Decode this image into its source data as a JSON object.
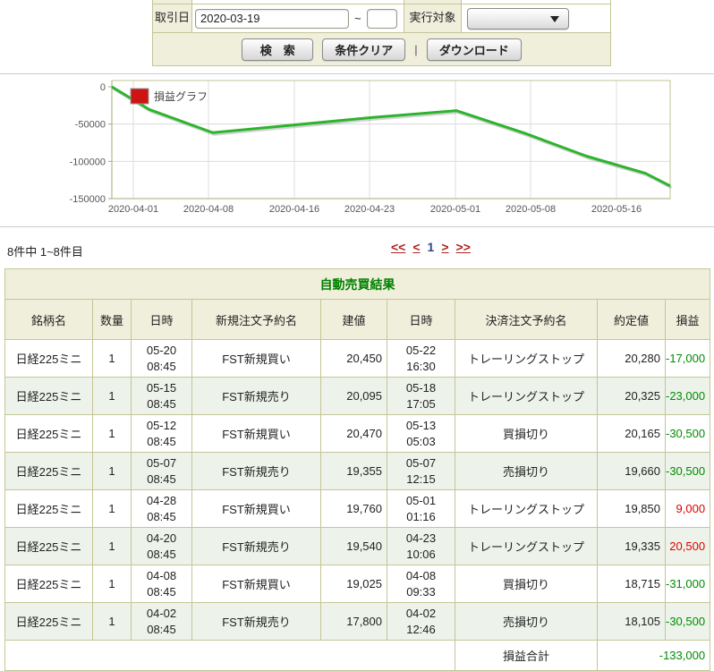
{
  "form": {
    "trade_date_label": "取引日",
    "date_from": "2020-03-19",
    "date_to": "",
    "tilde": "~",
    "target_label": "実行対象",
    "target_value": "",
    "search_label": "検　索",
    "clear_label": "条件クリア",
    "separator": "|",
    "download_label": "ダウンロード"
  },
  "list": {
    "count_text": "8件中 1~8件目",
    "pagination": [
      {
        "label": "<<",
        "type": "link"
      },
      {
        "label": "<",
        "type": "link"
      },
      {
        "label": "1",
        "type": "current"
      },
      {
        "label": ">",
        "type": "link"
      },
      {
        "label": ">>",
        "type": "link"
      }
    ]
  },
  "chart_data": {
    "type": "line",
    "title": "",
    "legend": [
      {
        "label": "損益グラフ",
        "color": "#cc1414"
      }
    ],
    "series": [
      {
        "name": "損益グラフ",
        "color": "#2db42d",
        "points": [
          {
            "date": "2020-03-30",
            "day": 0,
            "value": 0
          },
          {
            "date": "2020-04-02",
            "day": 3.5,
            "value": -30500
          },
          {
            "date": "2020-04-08",
            "day": 9.4,
            "value": -61500
          },
          {
            "date": "2020-04-23",
            "day": 24.4,
            "value": -41000
          },
          {
            "date": "2020-05-01",
            "day": 32.1,
            "value": -32000
          },
          {
            "date": "2020-05-07",
            "day": 38.5,
            "value": -62500
          },
          {
            "date": "2020-05-13",
            "day": 44.2,
            "value": -93000
          },
          {
            "date": "2020-05-18",
            "day": 49.7,
            "value": -116000
          },
          {
            "date": "2020-05-22",
            "day": 52.0,
            "value": -133000
          }
        ]
      }
    ],
    "x_ticks": [
      {
        "label": "2020-04-01",
        "day": 2
      },
      {
        "label": "2020-04-08",
        "day": 9
      },
      {
        "label": "2020-04-16",
        "day": 17
      },
      {
        "label": "2020-04-23",
        "day": 24
      },
      {
        "label": "2020-05-01",
        "day": 32
      },
      {
        "label": "2020-05-08",
        "day": 39
      },
      {
        "label": "2020-05-16",
        "day": 47
      }
    ],
    "x_span_days": 52,
    "y_ticks": [
      0,
      -50000,
      -100000,
      -150000
    ],
    "ylim": [
      8400,
      -150000
    ],
    "grid": true,
    "legend_position": "top-left"
  },
  "results": {
    "title": "自動売買結果",
    "headers": [
      "銘柄名",
      "数量",
      "日時",
      "新規注文予約名",
      "建値",
      "日時",
      "決済注文予約名",
      "約定値",
      "損益"
    ],
    "rows": [
      {
        "symbol": "日経225ミニ",
        "qty": "1",
        "open_date": "05-20",
        "open_time": "08:45",
        "open_order": "FST新規買い",
        "open_price": "20,450",
        "close_date": "05-22",
        "close_time": "16:30",
        "close_order": "トレーリングストップ",
        "close_price": "20,280",
        "pl": "-17,000",
        "pl_sign": "neg"
      },
      {
        "symbol": "日経225ミニ",
        "qty": "1",
        "open_date": "05-15",
        "open_time": "08:45",
        "open_order": "FST新規売り",
        "open_price": "20,095",
        "close_date": "05-18",
        "close_time": "17:05",
        "close_order": "トレーリングストップ",
        "close_price": "20,325",
        "pl": "-23,000",
        "pl_sign": "neg"
      },
      {
        "symbol": "日経225ミニ",
        "qty": "1",
        "open_date": "05-12",
        "open_time": "08:45",
        "open_order": "FST新規買い",
        "open_price": "20,470",
        "close_date": "05-13",
        "close_time": "05:03",
        "close_order": "買損切り",
        "close_price": "20,165",
        "pl": "-30,500",
        "pl_sign": "neg"
      },
      {
        "symbol": "日経225ミニ",
        "qty": "1",
        "open_date": "05-07",
        "open_time": "08:45",
        "open_order": "FST新規売り",
        "open_price": "19,355",
        "close_date": "05-07",
        "close_time": "12:15",
        "close_order": "売損切り",
        "close_price": "19,660",
        "pl": "-30,500",
        "pl_sign": "neg"
      },
      {
        "symbol": "日経225ミニ",
        "qty": "1",
        "open_date": "04-28",
        "open_time": "08:45",
        "open_order": "FST新規買い",
        "open_price": "19,760",
        "close_date": "05-01",
        "close_time": "01:16",
        "close_order": "トレーリングストップ",
        "close_price": "19,850",
        "pl": "9,000",
        "pl_sign": "pos"
      },
      {
        "symbol": "日経225ミニ",
        "qty": "1",
        "open_date": "04-20",
        "open_time": "08:45",
        "open_order": "FST新規売り",
        "open_price": "19,540",
        "close_date": "04-23",
        "close_time": "10:06",
        "close_order": "トレーリングストップ",
        "close_price": "19,335",
        "pl": "20,500",
        "pl_sign": "pos"
      },
      {
        "symbol": "日経225ミニ",
        "qty": "1",
        "open_date": "04-08",
        "open_time": "08:45",
        "open_order": "FST新規買い",
        "open_price": "19,025",
        "close_date": "04-08",
        "close_time": "09:33",
        "close_order": "買損切り",
        "close_price": "18,715",
        "pl": "-31,000",
        "pl_sign": "neg"
      },
      {
        "symbol": "日経225ミニ",
        "qty": "1",
        "open_date": "04-02",
        "open_time": "08:45",
        "open_order": "FST新規売り",
        "open_price": "17,800",
        "close_date": "04-02",
        "close_time": "12:46",
        "close_order": "売損切り",
        "close_price": "18,105",
        "pl": "-30,500",
        "pl_sign": "neg"
      }
    ],
    "footer": {
      "total_label": "損益合計",
      "total_value": "-133,000",
      "total_sign": "neg"
    }
  },
  "colors": {
    "loss_green": "#008c00",
    "profit_red": "#e00000",
    "panel_beige": "#f0efdc",
    "border_olive": "#c5c596",
    "pager_red": "#aa2222",
    "chart_line_green": "#2db42d",
    "legend_red": "#cc1414",
    "title_green": "#008000"
  }
}
